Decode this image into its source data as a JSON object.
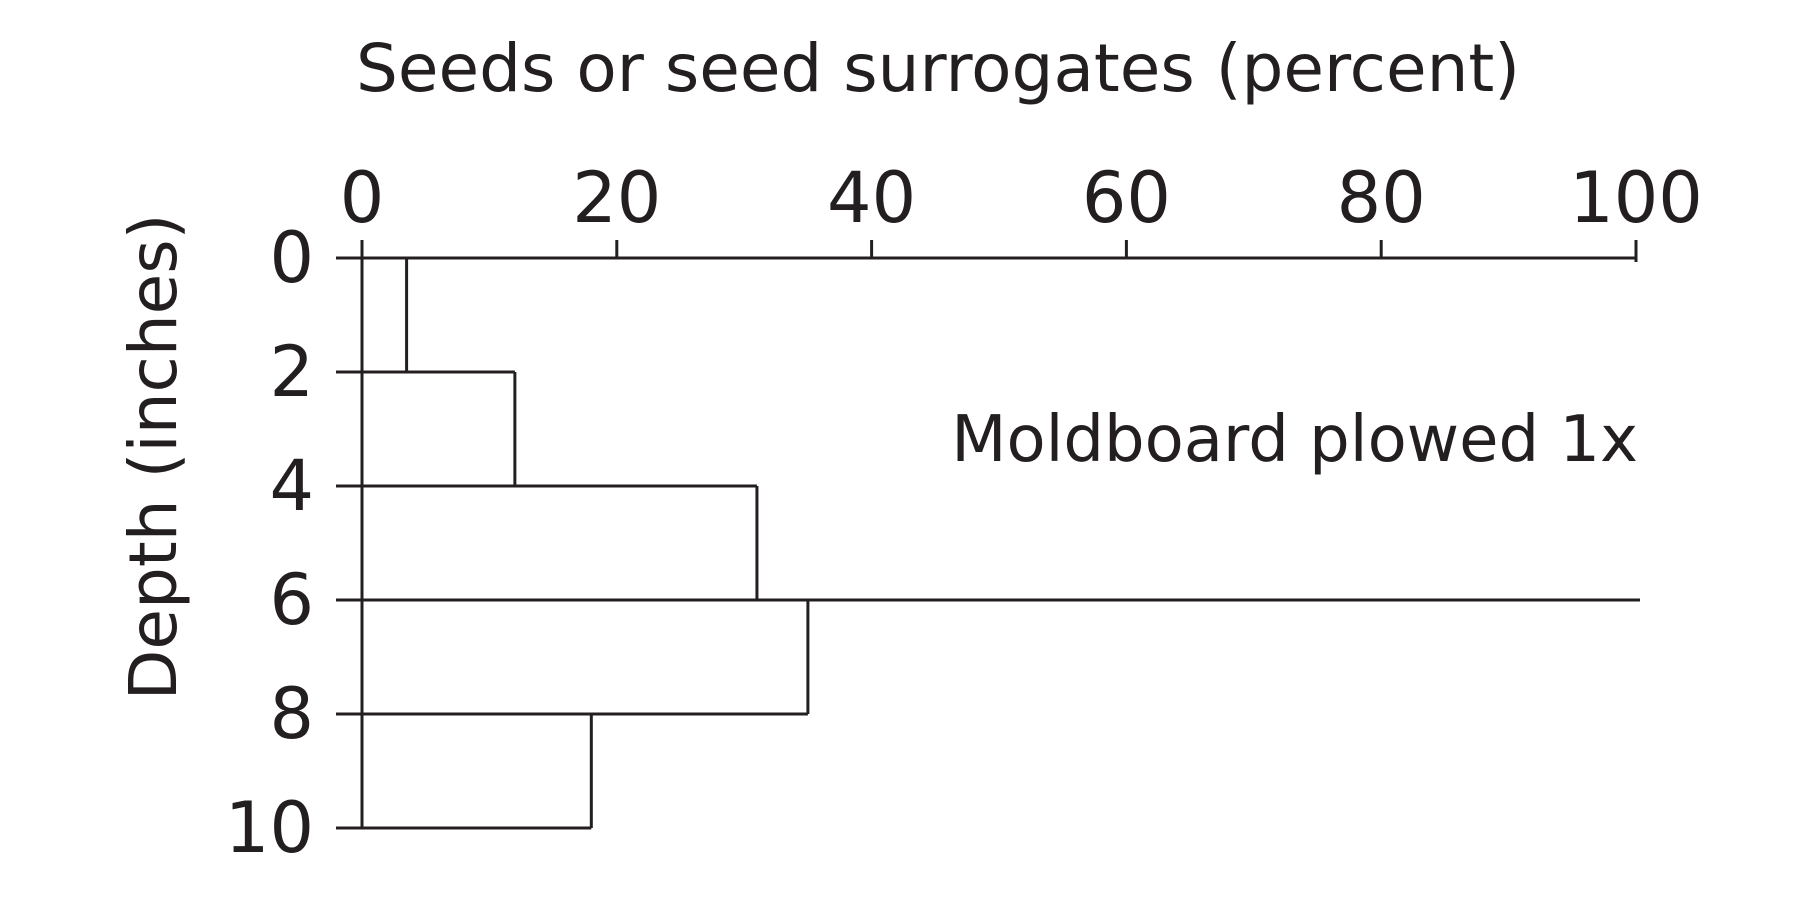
{
  "chart_data": {
    "type": "bar",
    "orientation": "horizontal",
    "title": "Seeds or seed surrogates (percent)",
    "xlabel": "Seeds or seed surrogates (percent)",
    "ylabel": "Depth (inches)",
    "xlim": [
      0,
      100
    ],
    "ylim": [
      0,
      10
    ],
    "x_ticks": [
      0,
      20,
      40,
      60,
      80,
      100
    ],
    "x_tick_labels": [
      "0",
      "20",
      "40",
      "60",
      "80",
      "100"
    ],
    "y_ticks": [
      0,
      2,
      4,
      6,
      8,
      10
    ],
    "y_tick_labels": [
      "0",
      "2",
      "4",
      "6",
      "8",
      "10"
    ],
    "y_inverted": true,
    "x_axis_position": "top",
    "grid": false,
    "bins": [
      {
        "depth_from": 0,
        "depth_to": 2,
        "value": 3.5
      },
      {
        "depth_from": 2,
        "depth_to": 4,
        "value": 12
      },
      {
        "depth_from": 4,
        "depth_to": 6,
        "value": 31
      },
      {
        "depth_from": 6,
        "depth_to": 8,
        "value": 35
      },
      {
        "depth_from": 8,
        "depth_to": 10,
        "value": 18
      }
    ],
    "reference_line": {
      "depth": 6
    },
    "annotation": "Moldboard plowed 1x"
  }
}
